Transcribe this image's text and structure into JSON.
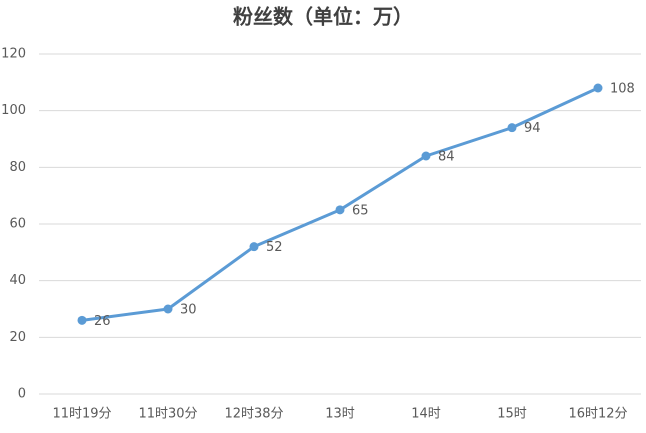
{
  "chart_data": {
    "type": "line",
    "title": "粉丝数（单位：万）",
    "categories": [
      "11时19分",
      "11时30分",
      "12时38分",
      "13时",
      "14时",
      "15时",
      "16时12分"
    ],
    "values": [
      26,
      30,
      52,
      65,
      84,
      94,
      108
    ],
    "color": "#5b9bd5",
    "ylim": [
      0,
      120
    ],
    "yticks": [
      0,
      20,
      40,
      60,
      80,
      100,
      120
    ],
    "grid": true
  }
}
